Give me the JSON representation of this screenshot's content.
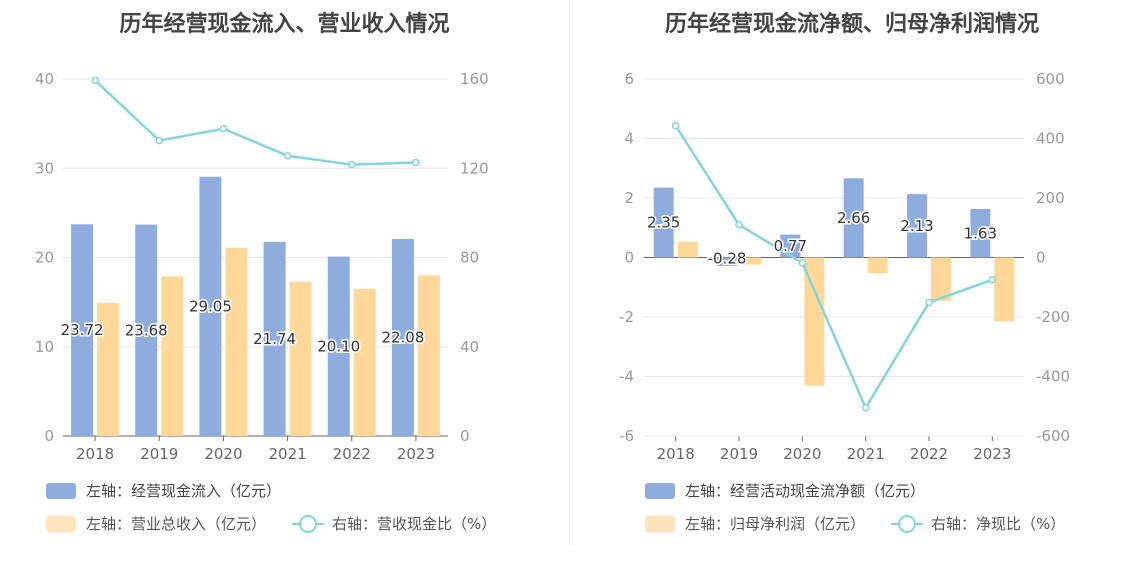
{
  "colors": {
    "bar_blue": "#8eadde",
    "bar_yellow": "#ffd799",
    "legend_yellow": "#ffe4bd",
    "line": "#86d3d9",
    "axis_text": "#999999",
    "grid": "#e4e6ef"
  },
  "chart_data": [
    {
      "type": "bar",
      "title": "历年经营现金流入、营业收入情况",
      "categories": [
        "2018",
        "2019",
        "2020",
        "2021",
        "2022",
        "2023"
      ],
      "left_axis": {
        "ylim": [
          0,
          40
        ],
        "ticks": [
          "0",
          "10",
          "20",
          "30",
          "40"
        ]
      },
      "right_axis": {
        "ylim": [
          0,
          160
        ],
        "ticks": [
          "0",
          "40",
          "80",
          "120",
          "160"
        ]
      },
      "series": [
        {
          "name": "左轴：经营现金流入（亿元）",
          "type": "bar",
          "axis": "left",
          "values": [
            23.72,
            23.68,
            29.05,
            21.74,
            20.1,
            22.08
          ],
          "labels": [
            "23.72",
            "23.68",
            "29.05",
            "21.74",
            "20.10",
            "22.08"
          ]
        },
        {
          "name": "左轴：营业总收入（亿元）",
          "type": "bar",
          "axis": "left",
          "values": [
            14.9,
            17.9,
            21.1,
            17.3,
            16.5,
            18.0
          ]
        },
        {
          "name": "右轴：营收现金比（%）",
          "type": "line",
          "axis": "right",
          "values": [
            159.4,
            132.4,
            137.7,
            125.6,
            121.6,
            122.6
          ]
        }
      ],
      "legend_placement": "bottom"
    },
    {
      "type": "bar",
      "title": "历年经营现金流净额、归母净利润情况",
      "categories": [
        "2018",
        "2019",
        "2020",
        "2021",
        "2022",
        "2023"
      ],
      "left_axis": {
        "ylim": [
          -6,
          6
        ],
        "ticks": [
          "-6",
          "-4",
          "-2",
          "0",
          "2",
          "4",
          "6"
        ]
      },
      "right_axis": {
        "ylim": [
          -600,
          600
        ],
        "ticks": [
          "-600",
          "-400",
          "-200",
          "0",
          "200",
          "400",
          "600"
        ]
      },
      "series": [
        {
          "name": "左轴：经营活动现金流净额（亿元）",
          "type": "bar",
          "axis": "left",
          "values": [
            2.35,
            -0.28,
            0.77,
            2.66,
            2.13,
            1.63
          ],
          "labels": [
            "2.35",
            "-0.28",
            "0.77",
            "2.66",
            "2.13",
            "1.63"
          ]
        },
        {
          "name": "左轴：归母净利润（亿元）",
          "type": "bar",
          "axis": "left",
          "values": [
            0.53,
            -0.24,
            -4.31,
            -0.53,
            -1.45,
            -2.15
          ]
        },
        {
          "name": "右轴：净现比（%）",
          "type": "line",
          "axis": "right",
          "values": [
            443,
            110,
            -18,
            -505,
            -151,
            -75
          ]
        }
      ],
      "legend_placement": "bottom"
    }
  ]
}
